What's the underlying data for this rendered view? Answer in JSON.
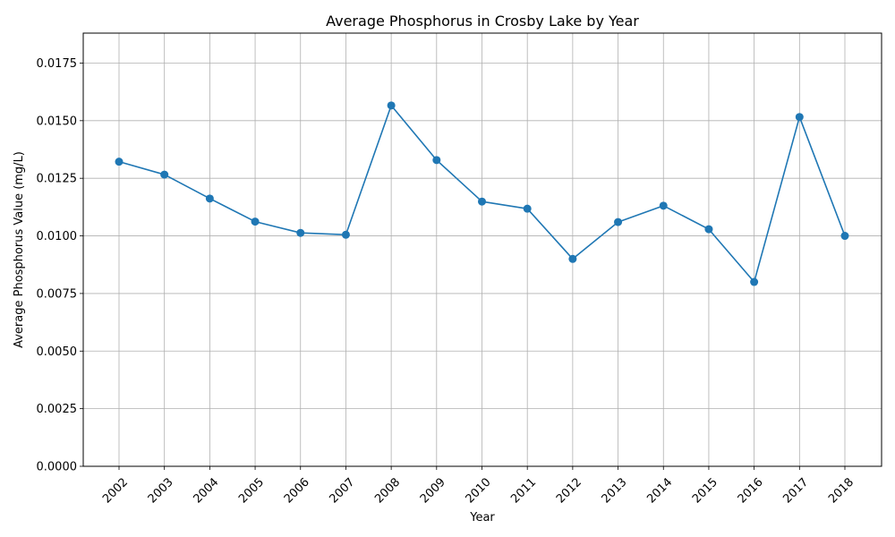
{
  "chart_data": {
    "type": "line",
    "title": "Average Phosphorus in Crosby Lake by Year",
    "xlabel": "Year",
    "ylabel": "Average Phosphorus Value (mg/L)",
    "categories": [
      "2002",
      "2003",
      "2004",
      "2005",
      "2006",
      "2007",
      "2008",
      "2009",
      "2010",
      "2011",
      "2012",
      "2013",
      "2014",
      "2015",
      "2016",
      "2017",
      "2018"
    ],
    "series": [
      {
        "values": [
          0.01322,
          0.01266,
          0.01162,
          0.01062,
          0.01013,
          0.01005,
          0.01566,
          0.01329,
          0.01149,
          0.01118,
          0.009,
          0.0106,
          0.01131,
          0.01029,
          0.008,
          0.01516,
          0.01
        ]
      }
    ],
    "ylim": [
      0,
      0.0188
    ],
    "yticks": [
      "0.0000",
      "0.0025",
      "0.0050",
      "0.0075",
      "0.0100",
      "0.0125",
      "0.0150",
      "0.0175"
    ],
    "grid": true,
    "line_color": "#1f77b4",
    "marker": "circle"
  }
}
